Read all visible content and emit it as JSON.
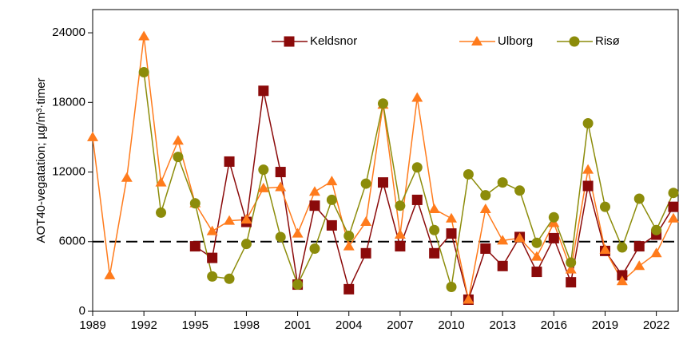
{
  "chart_data": {
    "type": "line",
    "ylabel": "AOT40-vegatation; µg/m³·timer",
    "x": [
      1989,
      1990,
      1991,
      1992,
      1993,
      1994,
      1995,
      1996,
      1997,
      1998,
      1999,
      2000,
      2001,
      2002,
      2003,
      2004,
      2005,
      2006,
      2007,
      2008,
      2009,
      2010,
      2011,
      2012,
      2013,
      2014,
      2015,
      2016,
      2017,
      2018,
      2019,
      2020,
      2021,
      2022,
      2023
    ],
    "series": [
      {
        "name": "Keldsnor",
        "color": "#8b0a0a",
        "marker": "square",
        "values": [
          null,
          null,
          null,
          null,
          null,
          null,
          5600,
          4600,
          12900,
          7700,
          19000,
          12000,
          2300,
          9100,
          7400,
          1900,
          5000,
          11100,
          5600,
          9600,
          5000,
          6700,
          1000,
          5400,
          3900,
          6400,
          3400,
          6300,
          2500,
          10800,
          5200,
          3100,
          5600,
          6600,
          9000
        ]
      },
      {
        "name": "Ulborg",
        "color": "#ff7b1c",
        "marker": "triangle",
        "values": [
          15000,
          3100,
          11500,
          23700,
          11100,
          14700,
          9300,
          6900,
          7800,
          7900,
          10600,
          10700,
          6700,
          10300,
          11200,
          5600,
          7700,
          17800,
          6600,
          18400,
          8800,
          8000,
          1000,
          8800,
          6100,
          6300,
          4700,
          7600,
          3600,
          12200,
          5300,
          2600,
          3900,
          5000,
          8000
        ]
      },
      {
        "name": "Risø",
        "color": "#8c8c0a",
        "marker": "circle",
        "values": [
          null,
          null,
          null,
          20600,
          8500,
          13300,
          9300,
          3000,
          2800,
          5800,
          12200,
          6400,
          2300,
          5400,
          9600,
          6500,
          11000,
          17900,
          9100,
          12400,
          7000,
          2100,
          11800,
          10000,
          11100,
          10400,
          5900,
          8100,
          4200,
          16200,
          9000,
          5500,
          9700,
          7000,
          10200
        ]
      }
    ],
    "reference_line": 6000,
    "xlim": [
      1989,
      2023
    ],
    "xticks": [
      1989,
      1992,
      1995,
      1998,
      2001,
      2004,
      2007,
      2010,
      2013,
      2016,
      2019,
      2022
    ],
    "ylim": [
      0,
      26000
    ],
    "yticks": [
      0,
      6000,
      12000,
      18000,
      24000
    ],
    "legend": "top"
  }
}
